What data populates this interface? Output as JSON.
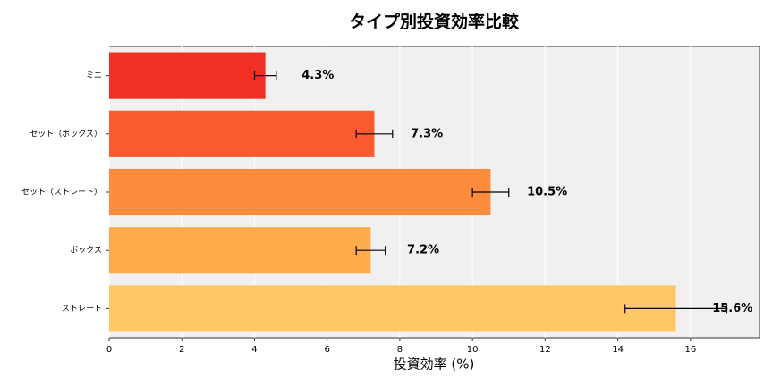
{
  "chart_data": {
    "type": "bar",
    "orientation": "horizontal",
    "title": "タイプ別投資効率比較",
    "xlabel": "投資効率 (%)",
    "categories": [
      "ミニ",
      "セット（ボックス）",
      "セット（ストレート）",
      "ボックス",
      "ストレート"
    ],
    "values": [
      4.3,
      7.3,
      10.5,
      7.2,
      15.6
    ],
    "errors": [
      0.3,
      0.5,
      0.5,
      0.4,
      1.4
    ],
    "value_labels": [
      "4.3%",
      "7.3%",
      "10.5%",
      "7.2%",
      "15.6%"
    ],
    "colors": [
      "#f03023",
      "#fc5a2f",
      "#fd8c3c",
      "#feab4b",
      "#fec965"
    ],
    "xlim": [
      0,
      17.9
    ],
    "xticks": [
      0,
      2,
      4,
      6,
      8,
      10,
      12,
      14,
      16
    ],
    "grid": true
  }
}
